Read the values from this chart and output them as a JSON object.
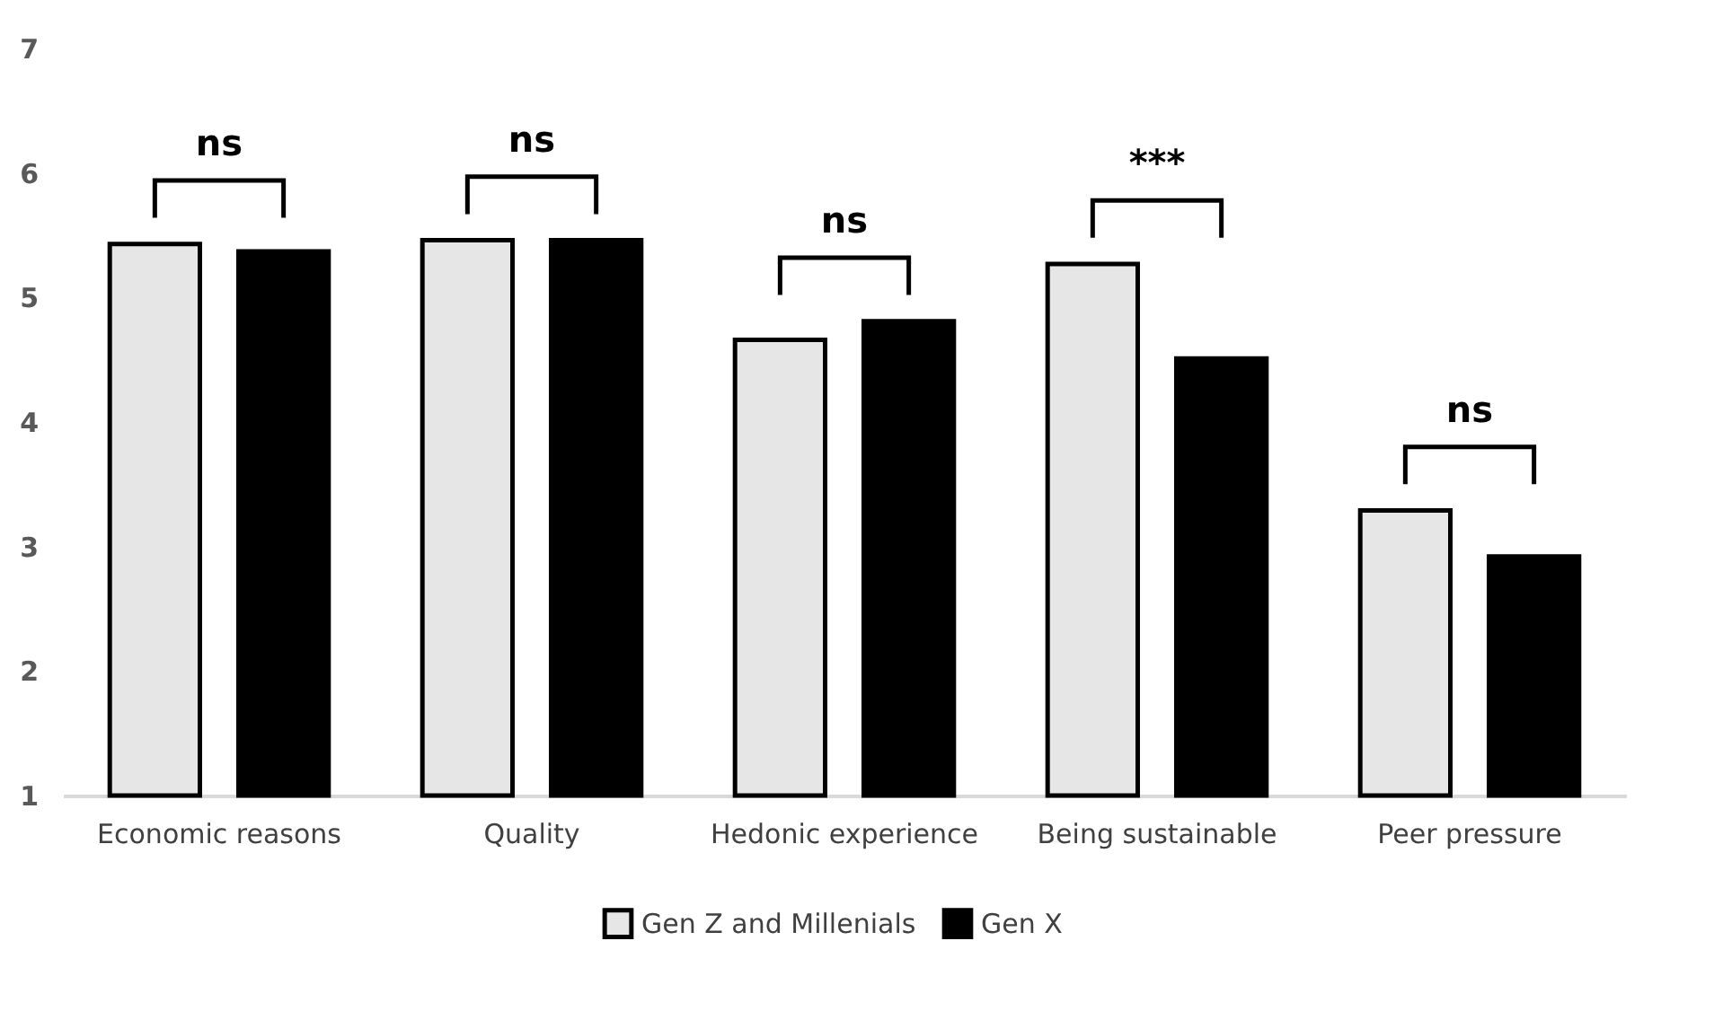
{
  "chart_data": {
    "type": "bar",
    "categories": [
      "Economic reasons",
      "Quality",
      "Hedonic experience",
      "Being sustainable",
      "Peer pressure"
    ],
    "series": [
      {
        "name": "Gen Z and Millenials",
        "color": "#e6e6e6",
        "values": [
          5.43,
          5.46,
          4.66,
          5.27,
          3.29
        ]
      },
      {
        "name": "Gen X",
        "color": "#000000",
        "values": [
          5.37,
          5.46,
          4.81,
          4.51,
          2.92
        ]
      }
    ],
    "ylim": [
      1,
      7
    ],
    "yticks": [
      1,
      2,
      3,
      4,
      5,
      6,
      7
    ],
    "grid": false,
    "legend": "bottom",
    "annotations": [
      "ns",
      "ns",
      "ns",
      "***",
      "ns"
    ]
  }
}
